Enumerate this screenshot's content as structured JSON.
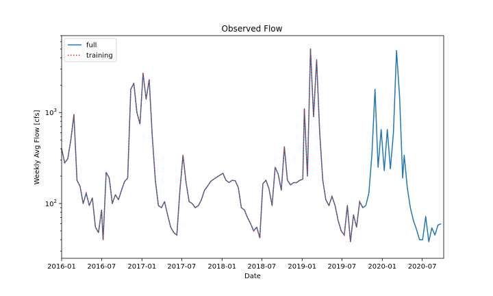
{
  "chart_data": {
    "type": "line",
    "title": "Observed Flow",
    "xlabel": "Date",
    "ylabel": "Weekly Avg Flow [cfs]",
    "yscale": "log",
    "ylim": [
      25,
      7000
    ],
    "xlim": [
      "2016-01-01",
      "2020-10-07"
    ],
    "grid": false,
    "legend_position": "upper left",
    "x_ticks": [
      "2016-01",
      "2016-07",
      "2017-01",
      "2017-07",
      "2018-01",
      "2018-07",
      "2019-01",
      "2019-07",
      "2020-01",
      "2020-07"
    ],
    "y_ticks": [
      {
        "value": 100,
        "base": "10",
        "exp": "2"
      },
      {
        "value": 1000,
        "base": "10",
        "exp": "3"
      }
    ],
    "series": [
      {
        "name": "full",
        "color": "#1f77b4",
        "style": "solid",
        "points": [
          [
            "2016-01-01",
            400
          ],
          [
            "2016-01-15",
            280
          ],
          [
            "2016-01-29",
            310
          ],
          [
            "2016-02-12",
            500
          ],
          [
            "2016-02-26",
            950
          ],
          [
            "2016-03-11",
            180
          ],
          [
            "2016-03-25",
            155
          ],
          [
            "2016-04-08",
            100
          ],
          [
            "2016-04-22",
            130
          ],
          [
            "2016-05-06",
            95
          ],
          [
            "2016-05-20",
            115
          ],
          [
            "2016-06-03",
            55
          ],
          [
            "2016-06-17",
            48
          ],
          [
            "2016-07-01",
            85
          ],
          [
            "2016-07-08",
            40
          ],
          [
            "2016-07-22",
            220
          ],
          [
            "2016-08-05",
            190
          ],
          [
            "2016-08-19",
            100
          ],
          [
            "2016-09-02",
            125
          ],
          [
            "2016-09-16",
            110
          ],
          [
            "2016-09-30",
            140
          ],
          [
            "2016-10-14",
            175
          ],
          [
            "2016-10-28",
            190
          ],
          [
            "2016-11-11",
            1800
          ],
          [
            "2016-11-25",
            2100
          ],
          [
            "2016-12-09",
            1000
          ],
          [
            "2016-12-23",
            750
          ],
          [
            "2017-01-06",
            2700
          ],
          [
            "2017-01-20",
            1400
          ],
          [
            "2017-02-03",
            2300
          ],
          [
            "2017-02-17",
            550
          ],
          [
            "2017-03-03",
            180
          ],
          [
            "2017-03-17",
            95
          ],
          [
            "2017-03-31",
            90
          ],
          [
            "2017-04-14",
            105
          ],
          [
            "2017-04-28",
            75
          ],
          [
            "2017-05-12",
            55
          ],
          [
            "2017-05-26",
            48
          ],
          [
            "2017-06-09",
            45
          ],
          [
            "2017-06-23",
            140
          ],
          [
            "2017-07-07",
            340
          ],
          [
            "2017-07-21",
            170
          ],
          [
            "2017-08-04",
            105
          ],
          [
            "2017-08-18",
            100
          ],
          [
            "2017-09-01",
            90
          ],
          [
            "2017-09-15",
            95
          ],
          [
            "2017-09-29",
            110
          ],
          [
            "2017-10-13",
            140
          ],
          [
            "2017-10-27",
            155
          ],
          [
            "2017-11-10",
            175
          ],
          [
            "2017-11-24",
            185
          ],
          [
            "2017-12-08",
            195
          ],
          [
            "2018-01-05",
            215
          ],
          [
            "2018-01-19",
            180
          ],
          [
            "2018-02-02",
            170
          ],
          [
            "2018-02-16",
            180
          ],
          [
            "2018-03-02",
            178
          ],
          [
            "2018-03-16",
            150
          ],
          [
            "2018-03-30",
            90
          ],
          [
            "2018-04-13",
            85
          ],
          [
            "2018-04-27",
            70
          ],
          [
            "2018-05-11",
            60
          ],
          [
            "2018-05-25",
            50
          ],
          [
            "2018-06-08",
            55
          ],
          [
            "2018-06-22",
            42
          ],
          [
            "2018-07-06",
            165
          ],
          [
            "2018-07-20",
            180
          ],
          [
            "2018-08-03",
            145
          ],
          [
            "2018-08-17",
            95
          ],
          [
            "2018-08-31",
            250
          ],
          [
            "2018-09-14",
            210
          ],
          [
            "2018-09-28",
            140
          ],
          [
            "2018-10-12",
            420
          ],
          [
            "2018-10-26",
            180
          ],
          [
            "2018-11-09",
            160
          ],
          [
            "2018-11-23",
            170
          ],
          [
            "2018-12-07",
            170
          ],
          [
            "2018-12-21",
            180
          ],
          [
            "2019-01-04",
            185
          ],
          [
            "2019-01-11",
            1100
          ],
          [
            "2019-01-25",
            200
          ],
          [
            "2019-02-08",
            5000
          ],
          [
            "2019-02-22",
            900
          ],
          [
            "2019-03-08",
            3800
          ],
          [
            "2019-03-22",
            600
          ],
          [
            "2019-04-05",
            180
          ],
          [
            "2019-04-19",
            110
          ],
          [
            "2019-05-03",
            95
          ],
          [
            "2019-05-17",
            120
          ],
          [
            "2019-05-31",
            95
          ],
          [
            "2019-06-14",
            65
          ],
          [
            "2019-06-28",
            50
          ],
          [
            "2019-07-12",
            45
          ],
          [
            "2019-07-26",
            95
          ],
          [
            "2019-08-09",
            38
          ],
          [
            "2019-08-23",
            75
          ],
          [
            "2019-09-06",
            55
          ],
          [
            "2019-09-20",
            105
          ],
          [
            "2019-10-04",
            90
          ],
          [
            "2019-10-18",
            95
          ],
          [
            "2019-11-01",
            130
          ],
          [
            "2019-11-15",
            350
          ],
          [
            "2019-11-29",
            1800
          ],
          [
            "2019-12-13",
            250
          ],
          [
            "2019-12-27",
            650
          ],
          [
            "2020-01-10",
            230
          ],
          [
            "2020-01-24",
            650
          ],
          [
            "2020-02-07",
            240
          ],
          [
            "2020-02-21",
            600
          ],
          [
            "2020-03-06",
            4800
          ],
          [
            "2020-03-20",
            1500
          ],
          [
            "2020-04-03",
            190
          ],
          [
            "2020-04-10",
            340
          ],
          [
            "2020-04-24",
            150
          ],
          [
            "2020-05-08",
            90
          ],
          [
            "2020-05-22",
            65
          ],
          [
            "2020-06-05",
            52
          ],
          [
            "2020-06-19",
            40
          ],
          [
            "2020-07-03",
            40
          ],
          [
            "2020-07-17",
            72
          ],
          [
            "2020-07-31",
            38
          ],
          [
            "2020-08-14",
            54
          ],
          [
            "2020-08-28",
            45
          ],
          [
            "2020-09-11",
            58
          ],
          [
            "2020-09-25",
            60
          ]
        ]
      },
      {
        "name": "training",
        "color": "#d62728",
        "style": "dotted",
        "until": "2019-10-04"
      }
    ]
  }
}
